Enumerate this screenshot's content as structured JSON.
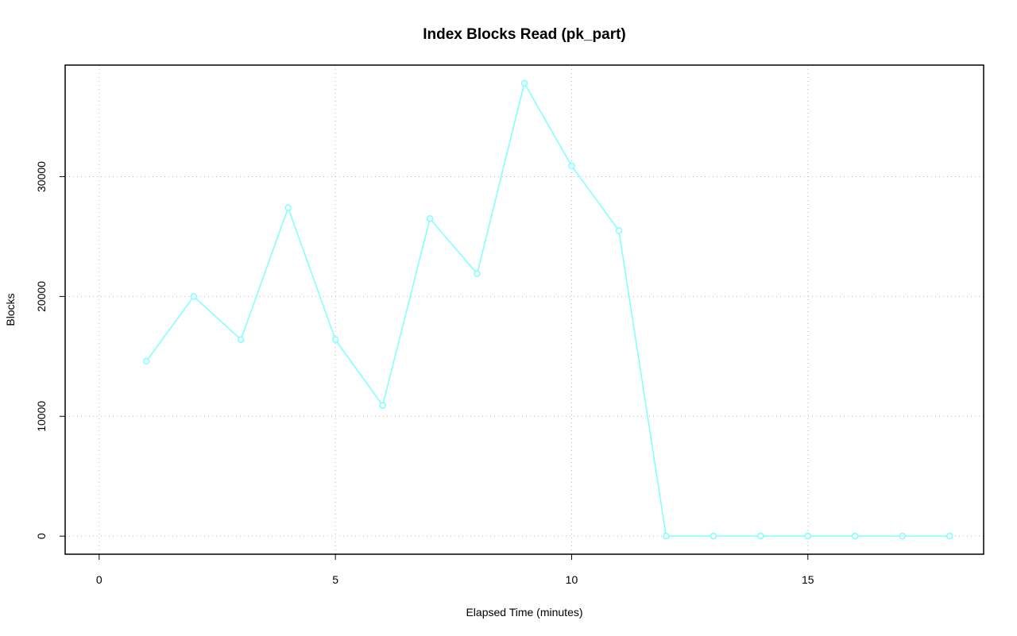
{
  "chart_data": {
    "type": "line",
    "title": "Index Blocks Read (pk_part)",
    "x_label": "Elapsed Time (minutes)",
    "y_label": "Blocks",
    "x": [
      1,
      2,
      3,
      4,
      5,
      6,
      7,
      8,
      9,
      10,
      11,
      12,
      13,
      14,
      15,
      16,
      17,
      18
    ],
    "series": [
      {
        "name": "Blocks",
        "color": "#7fffff",
        "values": [
          14600,
          20000,
          16400,
          27400,
          16400,
          10900,
          26500,
          21900,
          37800,
          30900,
          25500,
          0,
          0,
          0,
          0,
          0,
          0,
          0
        ]
      }
    ],
    "xlim": [
      -0.72,
      18.72
    ],
    "xticks": [
      0,
      5,
      10,
      15
    ],
    "ylim": [
      -1512,
      39312
    ],
    "yticks": [
      0,
      10000,
      20000,
      30000
    ],
    "grid": true
  }
}
